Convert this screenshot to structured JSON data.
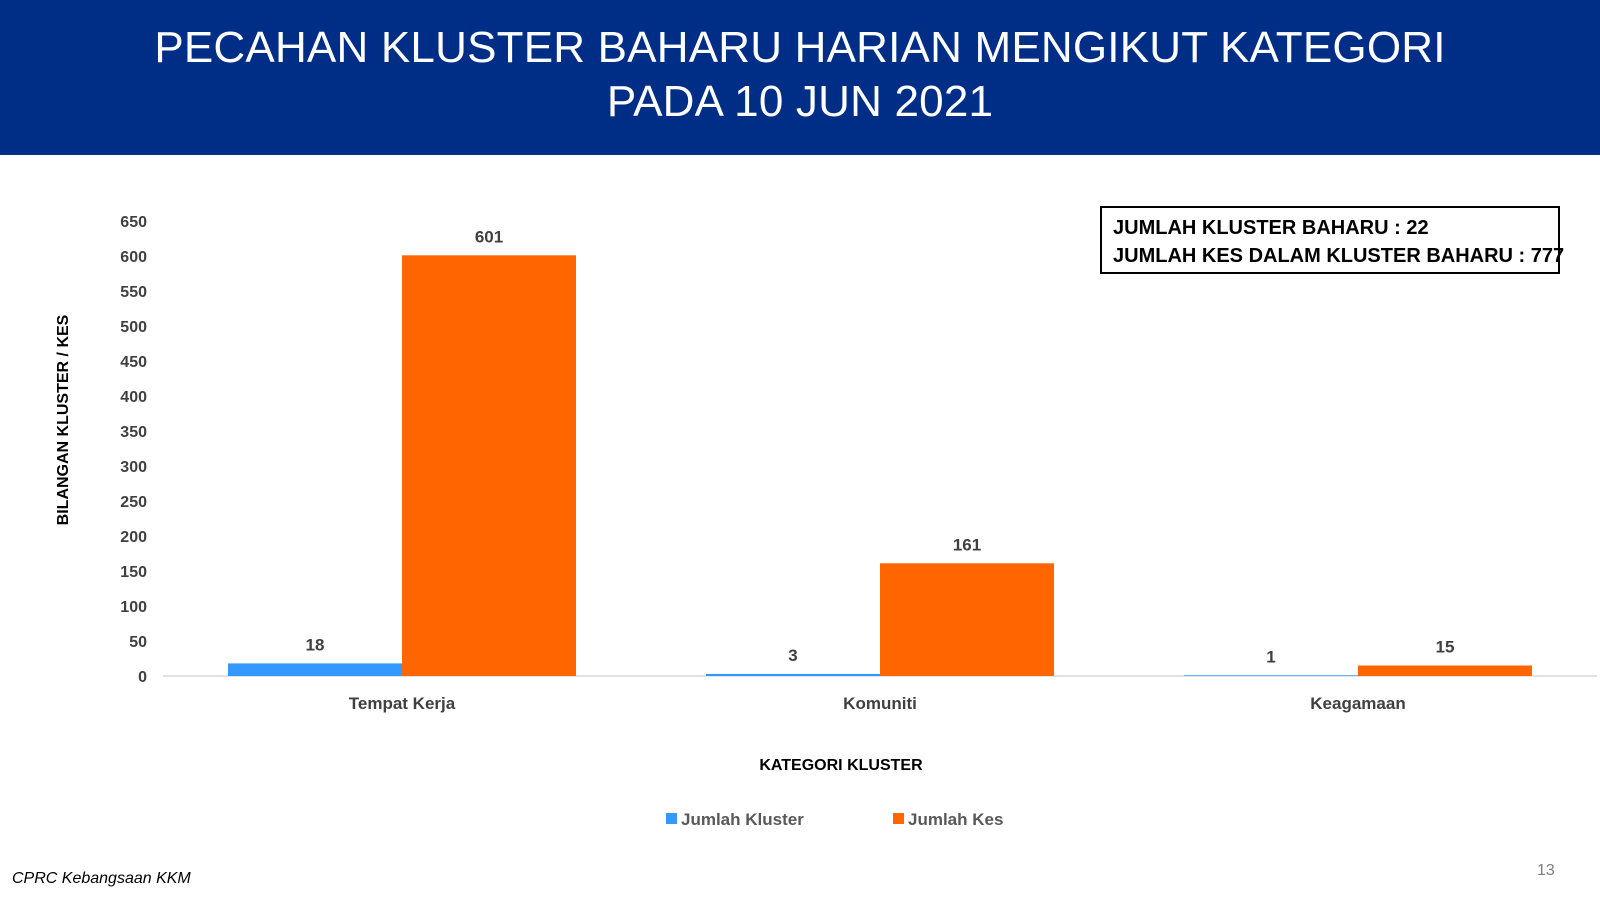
{
  "header": {
    "title_line1": "PECAHAN KLUSTER BAHARU HARIAN MENGIKUT KATEGORI",
    "title_line2": "PADA 10 JUN 2021"
  },
  "summary": {
    "line1": "JUMLAH KLUSTER BAHARU : 22",
    "line2": "JUMLAH KES DALAM KLUSTER BAHARU : 777"
  },
  "footer": {
    "source": "CPRC Kebangsaan KKM",
    "page_number": "13"
  },
  "colors": {
    "header_bg": "#002d86",
    "series_kluster": "#3399ff",
    "series_kes": "#ff6600"
  },
  "chart_data": {
    "type": "bar",
    "categories": [
      "Tempat Kerja",
      "Komuniti",
      "Keagamaan"
    ],
    "series": [
      {
        "name": "Jumlah Kluster",
        "values": [
          18,
          3,
          1
        ],
        "color": "#3399ff"
      },
      {
        "name": "Jumlah Kes",
        "values": [
          601,
          161,
          15
        ],
        "color": "#ff6600"
      }
    ],
    "xlabel": "KATEGORI KLUSTER",
    "ylabel": "BILANGAN KLUSTER / KES",
    "ylim": [
      0,
      650
    ],
    "yticks": [
      0,
      50,
      100,
      150,
      200,
      250,
      300,
      350,
      400,
      450,
      500,
      550,
      600,
      650
    ],
    "grid": false,
    "legend_position": "bottom"
  }
}
